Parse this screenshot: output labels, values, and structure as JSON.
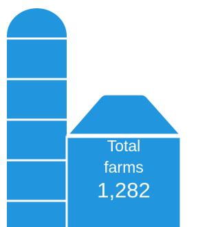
{
  "total": {
    "label_lines": [
      "Total",
      "farms"
    ],
    "value": "1,282"
  }
}
